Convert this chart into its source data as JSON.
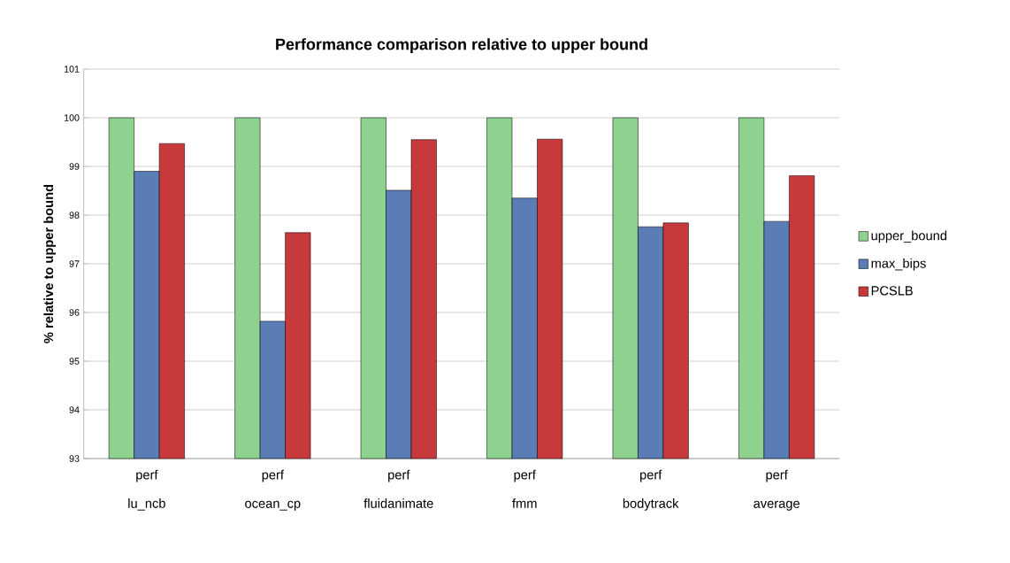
{
  "chart_data": {
    "type": "bar",
    "title": "Performance comparison relative to upper bound",
    "ylabel": "% relative to upper bound",
    "categories": [
      "lu_ncb",
      "ocean_cp",
      "fluidanimate",
      "fmm",
      "bodytrack",
      "average"
    ],
    "series": [
      {
        "name": "upper_bound",
        "color": "#8fd18f",
        "values": [
          100,
          100,
          100,
          100,
          100,
          100
        ]
      },
      {
        "name": "max_bips",
        "color": "#5a7db5",
        "values": [
          98.9,
          95.82,
          98.51,
          98.35,
          97.76,
          97.87
        ]
      },
      {
        "name": "PCSLB",
        "color": "#c8393c",
        "values": [
          99.47,
          97.64,
          99.55,
          99.56,
          97.84,
          98.81
        ]
      }
    ],
    "ylim": [
      93,
      101
    ],
    "yticks": [
      93,
      94,
      95,
      96,
      97,
      98,
      99,
      100,
      101
    ],
    "grid": "y",
    "legend": "right",
    "annotations": [
      "perf",
      "perf",
      "perf",
      "perf",
      "perf",
      "perf"
    ]
  }
}
